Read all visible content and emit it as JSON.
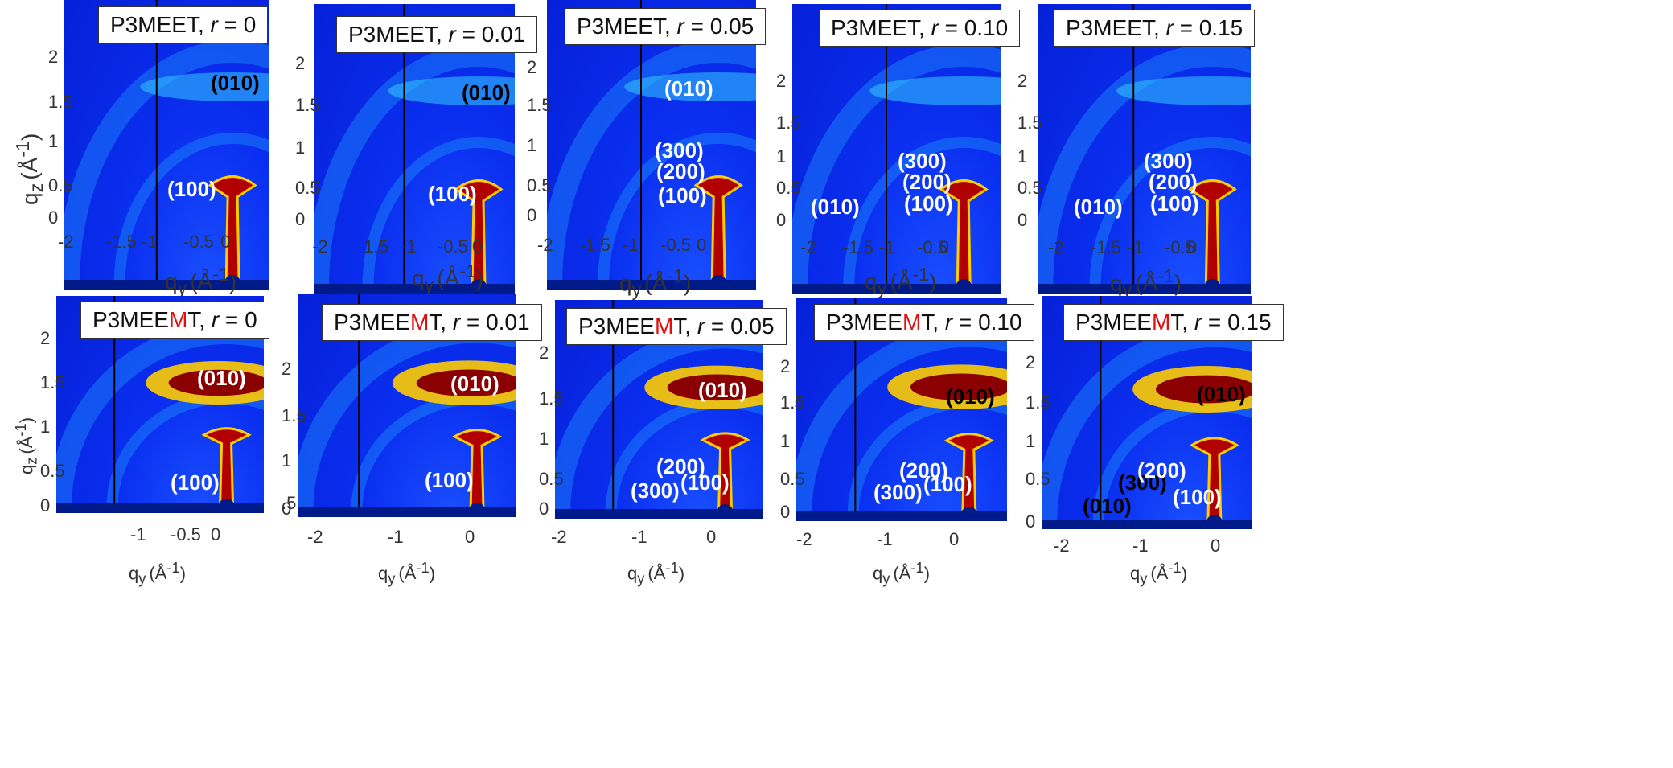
{
  "colors": {
    "heatmap_bg": "#0a2ff0",
    "hot": "#8b0000",
    "warm": "#ffcc00",
    "cyan": "#33ccff",
    "accent_m": "#e01010"
  },
  "axis": {
    "x_label_main": "q",
    "x_label_sub": "y",
    "y_label_main": "q",
    "y_label_sub": "z",
    "unit_prefix": "(Å",
    "unit_exp": "-1",
    "unit_suffix": ")"
  },
  "rows": [
    {
      "row": "top",
      "panels": [
        {
          "title_prefix": "P3MEE",
          "title_m": "",
          "title_suffix": "T, ",
          "title_r": "r",
          "title_value": " = 0",
          "x_ticks": [
            "-2",
            "-1.5",
            "-1",
            "-0.5",
            "0"
          ],
          "y_ticks": [
            "2",
            "1.5",
            "1",
            "0.5",
            "0"
          ],
          "peaks": [
            {
              "label": "(010)",
              "color": "black"
            },
            {
              "label": "(100)",
              "color": "white"
            }
          ]
        },
        {
          "title_prefix": "P3MEE",
          "title_m": "",
          "title_suffix": "T, ",
          "title_r": "r",
          "title_value": " = 0.01",
          "x_ticks": [
            "-2",
            "-1.5",
            "-1",
            "-0.5",
            "0"
          ],
          "y_ticks": [
            "2",
            "1.5",
            "1",
            "0.5",
            "0"
          ],
          "peaks": [
            {
              "label": "(010)",
              "color": "black"
            },
            {
              "label": "(100)",
              "color": "white"
            }
          ]
        },
        {
          "title_prefix": "P3MEE",
          "title_m": "",
          "title_suffix": "T, ",
          "title_r": "r",
          "title_value": " = 0.05",
          "x_ticks": [
            "-2",
            "-1.5",
            "-1",
            "-0.5",
            "0"
          ],
          "y_ticks": [
            "2",
            "1.5",
            "1",
            "0.5",
            "0"
          ],
          "peaks": [
            {
              "label": "(010)",
              "color": "white"
            },
            {
              "label": "(300)",
              "color": "white"
            },
            {
              "label": "(200)",
              "color": "white"
            },
            {
              "label": "(100)",
              "color": "white"
            }
          ]
        },
        {
          "title_prefix": "P3MEE",
          "title_m": "",
          "title_suffix": "T, ",
          "title_r": "r",
          "title_value": " = 0.10",
          "x_ticks": [
            "-2",
            "-1.5",
            "-1",
            "-0.5",
            "0"
          ],
          "y_ticks": [
            "2",
            "1.5",
            "1",
            "0.5",
            "0"
          ],
          "peaks": [
            {
              "label": "(300)",
              "color": "white"
            },
            {
              "label": "(200)",
              "color": "white"
            },
            {
              "label": "(100)",
              "color": "white"
            },
            {
              "label": "(010)",
              "color": "white"
            }
          ]
        },
        {
          "title_prefix": "P3MEE",
          "title_m": "",
          "title_suffix": "T, ",
          "title_r": "r",
          "title_value": " = 0.15",
          "x_ticks": [
            "-2",
            "-1.5",
            "-1",
            "-0.5",
            "0"
          ],
          "y_ticks": [
            "2",
            "1.5",
            "1",
            "0.5",
            "0"
          ],
          "peaks": [
            {
              "label": "(300)",
              "color": "white"
            },
            {
              "label": "(200)",
              "color": "white"
            },
            {
              "label": "(100)",
              "color": "white"
            },
            {
              "label": "(010)",
              "color": "white"
            }
          ]
        }
      ]
    },
    {
      "row": "bottom",
      "panels": [
        {
          "title_prefix": "P3MEE",
          "title_m": "M",
          "title_suffix": "T, ",
          "title_r": "r",
          "title_value": " = 0",
          "x_ticks": [
            "-1",
            "-0.5",
            "0"
          ],
          "y_ticks": [
            "2",
            "1.5",
            "1",
            "0.5",
            "0"
          ],
          "peaks": [
            {
              "label": "(010)",
              "color": "white"
            },
            {
              "label": "(100)",
              "color": "white"
            }
          ]
        },
        {
          "title_prefix": "P3MEE",
          "title_m": "M",
          "title_suffix": "T, ",
          "title_r": "r",
          "title_value": " = 0.01",
          "x_ticks": [
            "-2",
            "-1",
            "0"
          ],
          "y_ticks": [
            "2",
            "1.5",
            "1",
            ".5",
            "0"
          ],
          "peaks": [
            {
              "label": "(010)",
              "color": "white"
            },
            {
              "label": "(100)",
              "color": "white"
            }
          ]
        },
        {
          "title_prefix": "P3MEE",
          "title_m": "M",
          "title_suffix": "T, ",
          "title_r": "r",
          "title_value": " = 0.05",
          "x_ticks": [
            "-2",
            "-1",
            "0"
          ],
          "y_ticks": [
            "2",
            "1.5",
            "1",
            "0.5",
            "0"
          ],
          "peaks": [
            {
              "label": "(010)",
              "color": "white"
            },
            {
              "label": "(200)",
              "color": "white"
            },
            {
              "label": "(300)",
              "color": "white"
            },
            {
              "label": "(100)",
              "color": "white"
            }
          ]
        },
        {
          "title_prefix": "P3MEE",
          "title_m": "M",
          "title_suffix": "T, ",
          "title_r": "r",
          "title_value": " = 0.10",
          "x_ticks": [
            "-2",
            "-1",
            "0"
          ],
          "y_ticks": [
            "2",
            "1.5",
            "1",
            "0.5",
            "0"
          ],
          "peaks": [
            {
              "label": "(010)",
              "color": "black"
            },
            {
              "label": "(200)",
              "color": "white"
            },
            {
              "label": "(300)",
              "color": "white"
            },
            {
              "label": "(100)",
              "color": "white"
            }
          ]
        },
        {
          "title_prefix": "P3MEE",
          "title_m": "M",
          "title_suffix": "T, ",
          "title_r": "r",
          "title_value": " = 0.15",
          "x_ticks": [
            "-2",
            "-1",
            "0"
          ],
          "y_ticks": [
            "2",
            "1.5",
            "1",
            "0.5",
            "0"
          ],
          "peaks": [
            {
              "label": "(010)",
              "color": "black"
            },
            {
              "label": "(300)",
              "color": "black"
            },
            {
              "label": "(200)",
              "color": "white"
            },
            {
              "label": "(100)",
              "color": "white"
            },
            {
              "label": "(010)",
              "color": "black"
            }
          ]
        }
      ]
    }
  ]
}
